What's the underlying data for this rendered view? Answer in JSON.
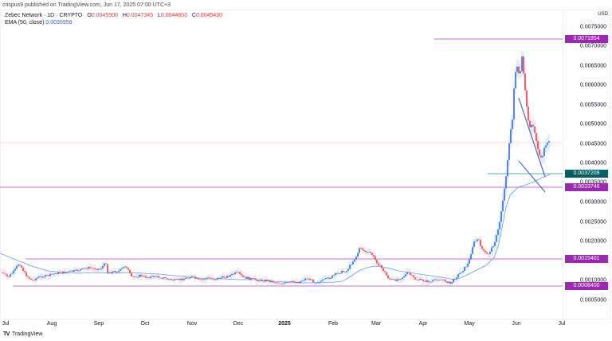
{
  "header": {
    "publisher_line": "crispus9 published on TradingView.com, Jun 17, 2025 07:00 UTC+3"
  },
  "legend": {
    "symbol": "Zebec Network · 1D · CRYPTO",
    "open_label": "O",
    "open": "0.0045900",
    "high_label": "H",
    "high": "0.0047345",
    "low_label": "L",
    "low": "0.0044853",
    "close_label": "C",
    "close": "0.0045430",
    "ema_label": "EMA (50, close)",
    "ema_value": "0.0035958"
  },
  "price_axis": {
    "currency": "USD",
    "ticks": [
      "0.0075000",
      "0.0070000",
      "0.0065000",
      "0.0060000",
      "0.0055000",
      "0.0050000",
      "0.0045000",
      "0.0040000",
      "0.0035000",
      "0.0030000",
      "0.0025000",
      "0.0020000",
      "0.0015000",
      "0.0010000",
      "0.0005000"
    ],
    "badges": [
      {
        "value": "0.0071854",
        "color": "#9c27b0"
      },
      {
        "value": "0.0037209",
        "color": "#006064"
      },
      {
        "value": "0.0033746",
        "color": "#9c27b0"
      },
      {
        "value": "0.0015401",
        "color": "#9c27b0"
      },
      {
        "value": "0.0008400",
        "color": "#9c27b0"
      }
    ]
  },
  "time_axis": {
    "ticks": [
      "Jul",
      "Aug",
      "Sep",
      "Oct",
      "Nov",
      "Dec",
      "2025",
      "Feb",
      "Mar",
      "Apr",
      "May",
      "Jun",
      "Jul"
    ]
  },
  "footer": {
    "logo": "TV",
    "brand": "TradingView"
  },
  "colors": {
    "up": "#089981",
    "up_body": "#2962ff",
    "down": "#f23645",
    "ema": "#5b9cf6",
    "level": "#c86dd7",
    "wedge": "#3d6fe0"
  },
  "chart_data": {
    "type": "candlestick",
    "title": "Zebec Network · 1D · CRYPTO",
    "ylabel": "USD",
    "ylim": [
      0.0,
      0.0078
    ],
    "x_ticks": [
      "Jul",
      "Aug",
      "Sep",
      "Oct",
      "Nov",
      "Dec",
      "2025",
      "Feb",
      "Mar",
      "Apr",
      "May",
      "Jun",
      "Jul"
    ],
    "last_ohlc": {
      "open": 0.00459,
      "high": 0.0047345,
      "low": 0.0044853,
      "close": 0.004543
    },
    "ema": {
      "period": 50,
      "source": "close",
      "last": 0.0035958
    },
    "horizontal_levels": [
      0.0071854,
      0.0037209,
      0.0033746,
      0.0015401,
      0.00084
    ],
    "approx_monthly_close": [
      {
        "month": "Jul 2024",
        "close": 0.0012
      },
      {
        "month": "Aug 2024",
        "close": 0.001
      },
      {
        "month": "Sep 2024",
        "close": 0.0013
      },
      {
        "month": "Oct 2024",
        "close": 0.0011
      },
      {
        "month": "Nov 2024",
        "close": 0.001
      },
      {
        "month": "Dec 2024",
        "close": 0.0011
      },
      {
        "month": "Jan 2025",
        "close": 0.0009
      },
      {
        "month": "Feb 2025",
        "close": 0.0018
      },
      {
        "month": "Mar 2025",
        "close": 0.001
      },
      {
        "month": "Apr 2025",
        "close": 0.0009
      },
      {
        "month": "May 2025",
        "close": 0.0062
      },
      {
        "month": "Jun 2025",
        "close": 0.004543
      }
    ],
    "annotations": [
      "falling wedge (two converging trendlines)",
      "range box 0.00084–0.0015401"
    ]
  }
}
